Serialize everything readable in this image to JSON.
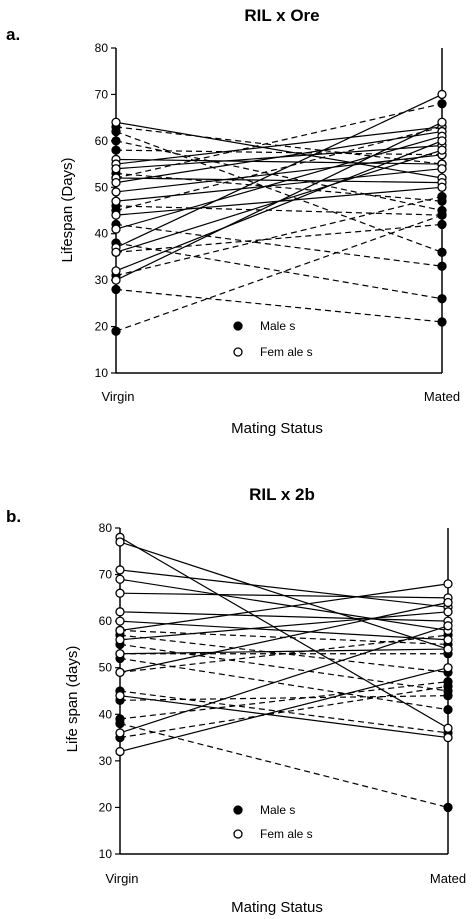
{
  "chart_data": [
    {
      "type": "line",
      "panel_label": "a.",
      "title": "RIL x Ore",
      "ylabel": "Lifespan (Days)",
      "xlabel": "Mating Status",
      "categories": [
        "Virgin",
        "Mated"
      ],
      "ylim": [
        10,
        80
      ],
      "yticks": [
        10,
        20,
        30,
        40,
        50,
        60,
        70,
        80
      ],
      "legend": {
        "position": "bottom-center",
        "entries": [
          {
            "label": "Male s",
            "marker": "filled-circle",
            "style": "dashed"
          },
          {
            "label": "Fem ale s",
            "marker": "open-circle",
            "style": "solid"
          }
        ]
      },
      "series": [
        {
          "sex": "male",
          "values": [
            63,
            55
          ]
        },
        {
          "sex": "male",
          "values": [
            62,
            36
          ]
        },
        {
          "sex": "male",
          "values": [
            60,
            45
          ]
        },
        {
          "sex": "male",
          "values": [
            58,
            57
          ]
        },
        {
          "sex": "male",
          "values": [
            53,
            47
          ]
        },
        {
          "sex": "male",
          "values": [
            52,
            68
          ]
        },
        {
          "sex": "male",
          "values": [
            46,
            44
          ]
        },
        {
          "sex": "male",
          "values": [
            45,
            63
          ]
        },
        {
          "sex": "male",
          "values": [
            42,
            33
          ]
        },
        {
          "sex": "male",
          "values": [
            38,
            26
          ]
        },
        {
          "sex": "male",
          "values": [
            36,
            42
          ]
        },
        {
          "sex": "male",
          "values": [
            31,
            48
          ]
        },
        {
          "sex": "male",
          "values": [
            28,
            21
          ]
        },
        {
          "sex": "male",
          "values": [
            19,
            44
          ]
        },
        {
          "sex": "female",
          "values": [
            64,
            52
          ]
        },
        {
          "sex": "female",
          "values": [
            56,
            55
          ]
        },
        {
          "sex": "female",
          "values": [
            55,
            63
          ]
        },
        {
          "sex": "female",
          "values": [
            54,
            59
          ]
        },
        {
          "sex": "female",
          "values": [
            52,
            51
          ]
        },
        {
          "sex": "female",
          "values": [
            51,
            62
          ]
        },
        {
          "sex": "female",
          "values": [
            49,
            57
          ]
        },
        {
          "sex": "female",
          "values": [
            47,
            54
          ]
        },
        {
          "sex": "female",
          "values": [
            44,
            50
          ]
        },
        {
          "sex": "female",
          "values": [
            41,
            61
          ]
        },
        {
          "sex": "female",
          "values": [
            37,
            70
          ]
        },
        {
          "sex": "female",
          "values": [
            36,
            58
          ]
        },
        {
          "sex": "female",
          "values": [
            32,
            60
          ]
        },
        {
          "sex": "female",
          "values": [
            30,
            64
          ]
        }
      ]
    },
    {
      "type": "line",
      "panel_label": "b.",
      "title": "RIL x 2b",
      "ylabel": "Life span (days)",
      "xlabel": "Mating Status",
      "categories": [
        "Virgin",
        "Mated"
      ],
      "ylim": [
        10,
        80
      ],
      "yticks": [
        10,
        20,
        30,
        40,
        50,
        60,
        70,
        80
      ],
      "legend": {
        "position": "bottom-center",
        "entries": [
          {
            "label": "Male s",
            "marker": "filled-circle",
            "style": "dashed"
          },
          {
            "label": "Fem ale s",
            "marker": "open-circle",
            "style": "solid"
          }
        ]
      },
      "series": [
        {
          "sex": "male",
          "values": [
            58,
            55
          ]
        },
        {
          "sex": "male",
          "values": [
            57,
            49
          ]
        },
        {
          "sex": "male",
          "values": [
            55,
            45
          ]
        },
        {
          "sex": "male",
          "values": [
            53,
            53
          ]
        },
        {
          "sex": "male",
          "values": [
            52,
            41
          ]
        },
        {
          "sex": "male",
          "values": [
            49,
            57
          ]
        },
        {
          "sex": "male",
          "values": [
            45,
            36
          ]
        },
        {
          "sex": "male",
          "values": [
            43,
            44
          ]
        },
        {
          "sex": "male",
          "values": [
            39,
            47
          ]
        },
        {
          "sex": "male",
          "values": [
            38,
            20
          ]
        },
        {
          "sex": "male",
          "values": [
            35,
            46
          ]
        },
        {
          "sex": "female",
          "values": [
            78,
            37
          ]
        },
        {
          "sex": "female",
          "values": [
            77,
            54
          ]
        },
        {
          "sex": "female",
          "values": [
            71,
            63
          ]
        },
        {
          "sex": "female",
          "values": [
            69,
            58
          ]
        },
        {
          "sex": "female",
          "values": [
            66,
            65
          ]
        },
        {
          "sex": "female",
          "values": [
            62,
            60
          ]
        },
        {
          "sex": "female",
          "values": [
            60,
            56
          ]
        },
        {
          "sex": "female",
          "values": [
            58,
            68
          ]
        },
        {
          "sex": "female",
          "values": [
            56,
            62
          ]
        },
        {
          "sex": "female",
          "values": [
            53,
            54
          ]
        },
        {
          "sex": "female",
          "values": [
            49,
            64
          ]
        },
        {
          "sex": "female",
          "values": [
            44,
            35
          ]
        },
        {
          "sex": "female",
          "values": [
            36,
            59
          ]
        },
        {
          "sex": "female",
          "values": [
            32,
            50
          ]
        }
      ]
    }
  ]
}
